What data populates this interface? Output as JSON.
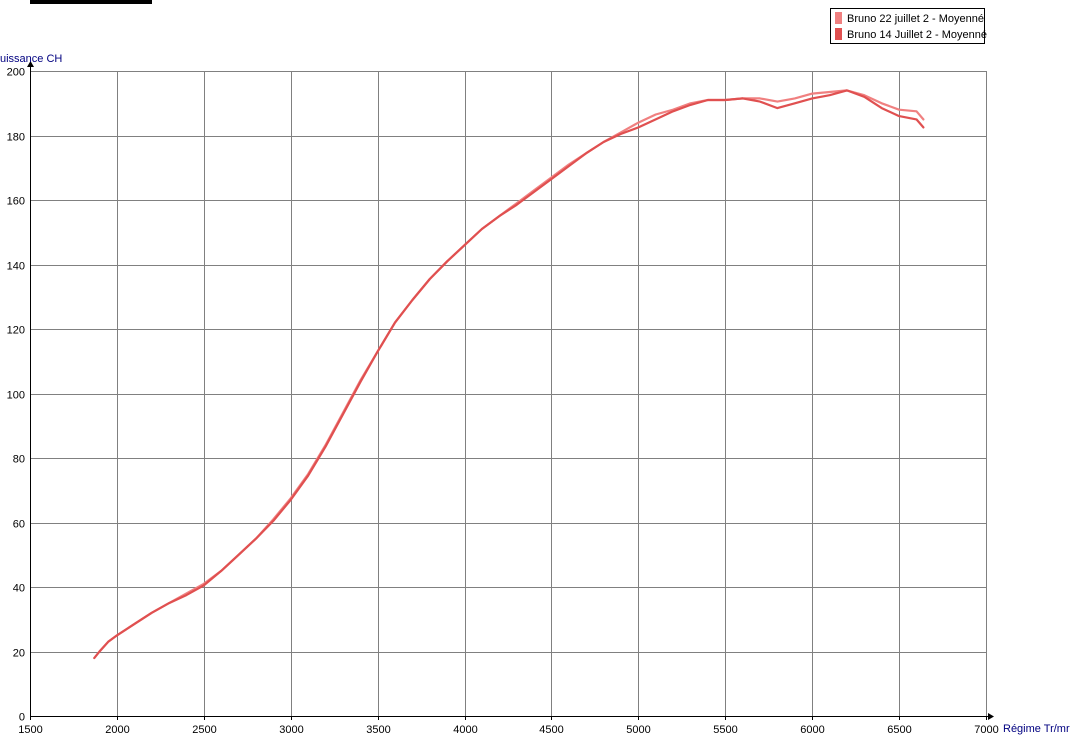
{
  "chart_data": {
    "type": "line",
    "xlabel": "Régime Tr/mr",
    "ylabel": "uissance CH",
    "xlim": [
      1500,
      7000
    ],
    "ylim": [
      0,
      200
    ],
    "x_ticks": [
      1500,
      2000,
      2500,
      3000,
      3500,
      4000,
      4500,
      5000,
      5500,
      6000,
      6500,
      7000
    ],
    "y_ticks": [
      0,
      20,
      40,
      60,
      80,
      100,
      120,
      140,
      160,
      180,
      200
    ],
    "grid": true,
    "legend_position": "top-right",
    "series": [
      {
        "name": "Bruno 22 juillet 2 - Moyenné",
        "color": "#f08080",
        "points": [
          [
            1870,
            18
          ],
          [
            1900,
            20
          ],
          [
            1950,
            23
          ],
          [
            2000,
            25
          ],
          [
            2100,
            28.5
          ],
          [
            2200,
            32
          ],
          [
            2300,
            35
          ],
          [
            2400,
            38
          ],
          [
            2500,
            41
          ],
          [
            2600,
            45
          ],
          [
            2700,
            50
          ],
          [
            2800,
            55
          ],
          [
            2900,
            61
          ],
          [
            3000,
            67.5
          ],
          [
            3100,
            75
          ],
          [
            3200,
            84
          ],
          [
            3300,
            94
          ],
          [
            3400,
            104
          ],
          [
            3500,
            113
          ],
          [
            3600,
            122
          ],
          [
            3700,
            129
          ],
          [
            3800,
            135.5
          ],
          [
            3900,
            141
          ],
          [
            4000,
            146
          ],
          [
            4100,
            151
          ],
          [
            4200,
            155
          ],
          [
            4300,
            159
          ],
          [
            4400,
            163
          ],
          [
            4500,
            167
          ],
          [
            4600,
            171
          ],
          [
            4700,
            174.5
          ],
          [
            4800,
            178
          ],
          [
            4900,
            181
          ],
          [
            5000,
            184
          ],
          [
            5100,
            186.5
          ],
          [
            5200,
            188
          ],
          [
            5300,
            190
          ],
          [
            5400,
            191
          ],
          [
            5500,
            191
          ],
          [
            5600,
            191.5
          ],
          [
            5700,
            191.5
          ],
          [
            5800,
            190.5
          ],
          [
            5900,
            191.5
          ],
          [
            6000,
            193
          ],
          [
            6100,
            193.5
          ],
          [
            6200,
            194
          ],
          [
            6300,
            192.5
          ],
          [
            6400,
            190
          ],
          [
            6500,
            188
          ],
          [
            6600,
            187.5
          ],
          [
            6640,
            185
          ]
        ]
      },
      {
        "name": "Bruno 14 Juillet 2 - Moyenné",
        "color": "#e05050",
        "points": [
          [
            1870,
            18
          ],
          [
            1900,
            20
          ],
          [
            1950,
            23
          ],
          [
            2000,
            25
          ],
          [
            2100,
            28.5
          ],
          [
            2200,
            32
          ],
          [
            2300,
            35
          ],
          [
            2400,
            37.5
          ],
          [
            2500,
            40.5
          ],
          [
            2600,
            45
          ],
          [
            2700,
            50
          ],
          [
            2800,
            55
          ],
          [
            2900,
            60.5
          ],
          [
            3000,
            67
          ],
          [
            3100,
            74.5
          ],
          [
            3200,
            83.5
          ],
          [
            3300,
            93.5
          ],
          [
            3400,
            103.5
          ],
          [
            3500,
            113
          ],
          [
            3600,
            122
          ],
          [
            3700,
            129
          ],
          [
            3800,
            135.5
          ],
          [
            3900,
            141
          ],
          [
            4000,
            146
          ],
          [
            4100,
            151
          ],
          [
            4200,
            155
          ],
          [
            4300,
            158.5
          ],
          [
            4400,
            162.5
          ],
          [
            4500,
            166.5
          ],
          [
            4600,
            170.5
          ],
          [
            4700,
            174.5
          ],
          [
            4800,
            178
          ],
          [
            4900,
            180.5
          ],
          [
            5000,
            182.5
          ],
          [
            5100,
            185
          ],
          [
            5200,
            187.5
          ],
          [
            5300,
            189.5
          ],
          [
            5400,
            191
          ],
          [
            5500,
            191
          ],
          [
            5600,
            191.5
          ],
          [
            5700,
            190.5
          ],
          [
            5800,
            188.5
          ],
          [
            5900,
            190
          ],
          [
            6000,
            191.5
          ],
          [
            6100,
            192.5
          ],
          [
            6200,
            194
          ],
          [
            6300,
            192
          ],
          [
            6400,
            188.5
          ],
          [
            6500,
            186
          ],
          [
            6600,
            185
          ],
          [
            6640,
            182.5
          ]
        ]
      }
    ]
  }
}
